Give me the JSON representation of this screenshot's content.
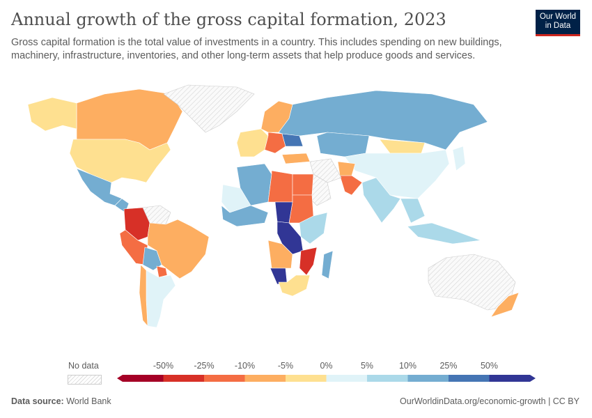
{
  "header": {
    "title": "Annual growth of the gross capital formation, 2023",
    "subtitle": "Gross capital formation is the total value of investments in a country. This includes spending on new buildings, machinery, infrastructure, inventories, and other long-term assets that help produce goods and services.",
    "logo_line1": "Our World",
    "logo_line2": "in Data"
  },
  "legend": {
    "no_data_label": "No data",
    "thresholds": [
      "-50%",
      "-25%",
      "-10%",
      "-5%",
      "0%",
      "5%",
      "10%",
      "25%",
      "50%"
    ],
    "colors": [
      "#a50026",
      "#d73027",
      "#f46d43",
      "#fdae61",
      "#fee090",
      "#e0f3f8",
      "#abd9e9",
      "#74add1",
      "#4575b4",
      "#313695"
    ]
  },
  "map": {
    "regions": [
      {
        "name": "Canada",
        "bin": 3
      },
      {
        "name": "United States",
        "bin": 4
      },
      {
        "name": "Alaska",
        "bin": 4
      },
      {
        "name": "Greenland",
        "bin": -1
      },
      {
        "name": "Mexico",
        "bin": 7
      },
      {
        "name": "Central America",
        "bin": 7
      },
      {
        "name": "Colombia",
        "bin": 1
      },
      {
        "name": "Venezuela",
        "bin": -1
      },
      {
        "name": "Brazil",
        "bin": 3
      },
      {
        "name": "Peru",
        "bin": 2
      },
      {
        "name": "Bolivia",
        "bin": 7
      },
      {
        "name": "Paraguay",
        "bin": 2
      },
      {
        "name": "Argentina",
        "bin": 5
      },
      {
        "name": "Chile",
        "bin": 3
      },
      {
        "name": "Russia",
        "bin": 7
      },
      {
        "name": "Kazakhstan",
        "bin": 7
      },
      {
        "name": "Mongolia",
        "bin": 4
      },
      {
        "name": "China",
        "bin": 5
      },
      {
        "name": "India",
        "bin": 6
      },
      {
        "name": "Pakistan",
        "bin": 2
      },
      {
        "name": "Afghanistan",
        "bin": 3
      },
      {
        "name": "Iran",
        "bin": -1
      },
      {
        "name": "Saudi Arabia",
        "bin": -1
      },
      {
        "name": "Turkey",
        "bin": 3
      },
      {
        "name": "Scandinavia",
        "bin": 3
      },
      {
        "name": "Western Europe",
        "bin": 4
      },
      {
        "name": "Central Europe",
        "bin": 2
      },
      {
        "name": "Ukraine",
        "bin": 8
      },
      {
        "name": "Algeria",
        "bin": 7
      },
      {
        "name": "Mali",
        "bin": 5
      },
      {
        "name": "Libya",
        "bin": 2
      },
      {
        "name": "Egypt",
        "bin": 2
      },
      {
        "name": "Sudan",
        "bin": 2
      },
      {
        "name": "Chad",
        "bin": 9
      },
      {
        "name": "West Africa",
        "bin": 7
      },
      {
        "name": "DR Congo",
        "bin": 9
      },
      {
        "name": "Angola",
        "bin": 3
      },
      {
        "name": "Namibia",
        "bin": 9
      },
      {
        "name": "South Africa",
        "bin": 4
      },
      {
        "name": "Mozambique",
        "bin": 1
      },
      {
        "name": "Madagascar",
        "bin": 7
      },
      {
        "name": "East Africa",
        "bin": 6
      },
      {
        "name": "Southeast Asia",
        "bin": 6
      },
      {
        "name": "Indonesia",
        "bin": 6
      },
      {
        "name": "Japan",
        "bin": 5
      },
      {
        "name": "Australia",
        "bin": -1
      },
      {
        "name": "New Zealand",
        "bin": 3
      }
    ]
  },
  "footer": {
    "source_label": "Data source:",
    "source": "World Bank",
    "url": "OurWorldinData.org/economic-growth | CC BY"
  }
}
